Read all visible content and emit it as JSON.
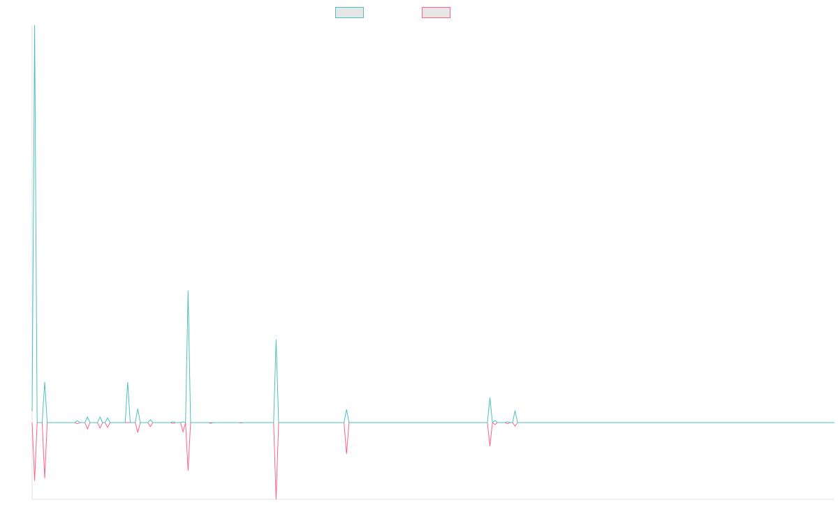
{
  "chart_data": {
    "type": "line",
    "x": [
      0,
      1,
      2,
      4,
      5,
      6,
      17,
      18,
      19,
      21,
      22,
      23,
      26,
      27,
      28,
      29,
      30,
      31,
      37,
      38,
      39,
      41,
      42,
      43,
      46,
      47,
      48,
      55,
      56,
      57,
      59,
      60,
      61,
      62,
      63,
      70,
      71,
      72,
      82,
      83,
      84,
      96,
      97,
      98,
      124,
      125,
      126,
      181,
      182,
      183,
      184,
      185,
      188,
      189,
      190,
      191,
      192,
      193,
      319
    ],
    "xlim": [
      0,
      319
    ],
    "ylim": [
      -19.3,
      100
    ],
    "legend": "top",
    "series": [
      {
        "color": "#ff6384",
        "values": [
          0,
          -14.6,
          0,
          0,
          -14,
          0,
          0,
          -0.3,
          0,
          0,
          -1.6,
          0,
          0,
          -1.4,
          0,
          0,
          -1.2,
          0,
          0,
          0,
          0,
          0,
          -2.5,
          0,
          0,
          -1,
          0,
          0,
          -0.2,
          0,
          0,
          -2.3,
          0,
          -12.1,
          0,
          0,
          -0.2,
          0,
          0,
          -0.1,
          0,
          0,
          -19.3,
          0,
          0,
          -7.9,
          0,
          0,
          -6,
          0,
          -0.5,
          0,
          0,
          -0.3,
          0,
          0,
          -0.9,
          0,
          0
        ]
      },
      {
        "color": "#4bc0c0",
        "values": [
          2.8,
          100,
          0,
          0,
          10.2,
          0,
          0,
          0.5,
          0,
          0,
          1.4,
          0,
          0,
          1.4,
          0,
          0,
          1.2,
          0,
          0,
          10.2,
          0,
          0,
          3.5,
          0,
          0,
          0.7,
          0,
          0,
          0.2,
          0,
          0,
          0.2,
          0,
          33.2,
          0,
          0,
          0,
          0,
          0,
          0,
          0,
          0,
          20.9,
          0,
          0,
          3.3,
          0,
          0,
          6.3,
          0,
          0.5,
          0,
          0,
          0.2,
          0,
          0,
          3,
          0,
          0
        ]
      }
    ]
  }
}
